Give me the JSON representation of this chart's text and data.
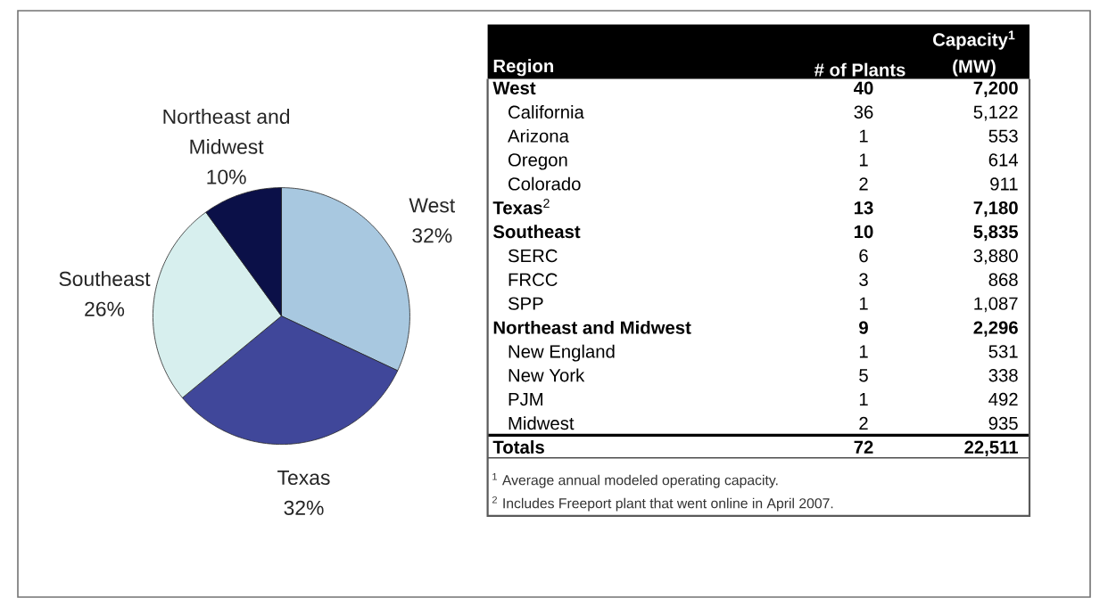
{
  "chart_data": [
    {
      "type": "pie",
      "categories": [
        "West",
        "Texas",
        "Southeast",
        "Northeast and Midwest"
      ],
      "values": [
        32,
        32,
        26,
        10
      ],
      "value_labels": [
        "32%",
        "32%",
        "26%",
        "10%"
      ],
      "colors": [
        "#a8c8e0",
        "#40479a",
        "#d7efee",
        "#0b1048"
      ]
    },
    {
      "type": "other",
      "annotations": [
        "Region",
        "# of Plants",
        "Capacity$^{1}$ (MW)",
        "**West**",
        "**40**",
        "**7,200**",
        "California",
        "36",
        "5,122",
        "Arizona",
        "1",
        "553",
        "Oregon",
        "1",
        "614",
        "Colorado",
        "2",
        "911",
        "**Texas**$^{2}$",
        "**13**",
        "**7,180**",
        "**Southeast**",
        "**10**",
        "**5,835**",
        "SERC",
        "6",
        "3,880",
        "FRCC",
        "3",
        "868",
        "SPP",
        "1",
        "1,087",
        "**Northeast and Midwest**",
        "**9**",
        "**2,296**",
        "New England",
        "1",
        "531",
        "New York",
        "5",
        "338",
        "PJM",
        "1",
        "492",
        "Midwest",
        "2",
        "935",
        "**Totals**",
        "**72**",
        "**22,511**",
        "$^{1}$ Average annual modeled operating capacity.",
        "$^{2}$ Includes Freeport plant that went online in April 2007."
      ]
    }
  ]
}
